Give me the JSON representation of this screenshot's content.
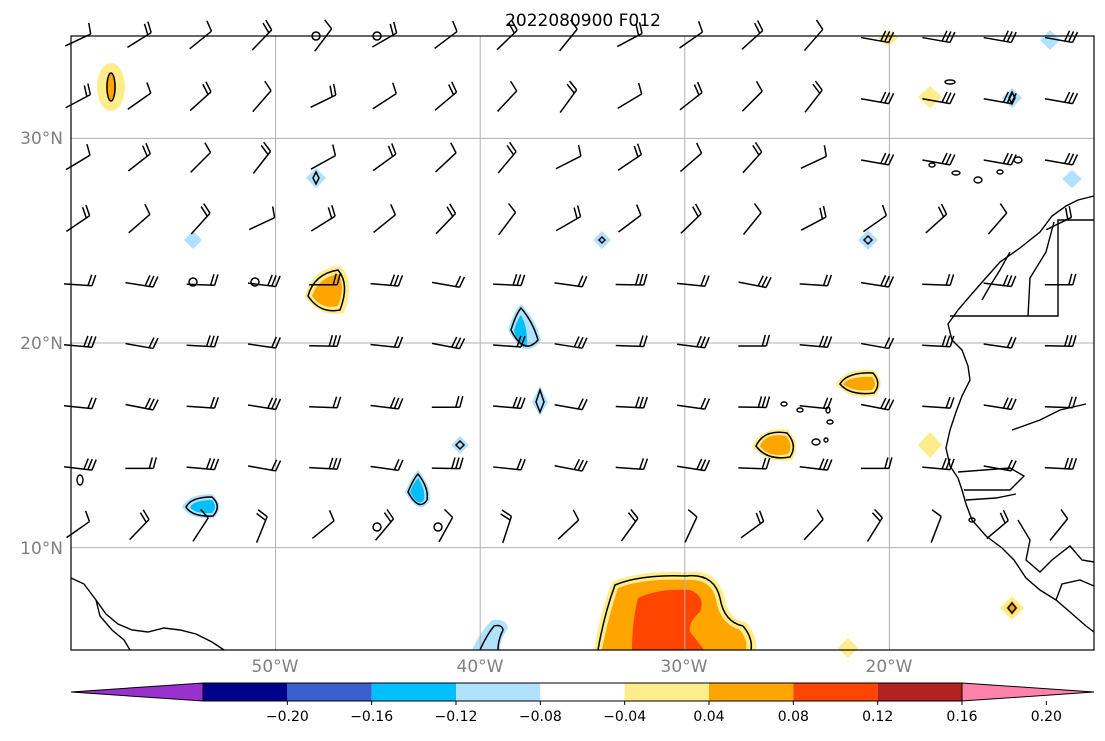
{
  "title": "2022080900 F012",
  "lat_labels": [
    "30°N",
    "20°N",
    "10°N"
  ],
  "lon_labels": [
    "50°W",
    "40°W",
    "30°W",
    "20°W"
  ],
  "colorbar": {
    "ticks": [
      "−0.20",
      "−0.16",
      "−0.12",
      "−0.08",
      "−0.04",
      "0.04",
      "0.08",
      "0.12",
      "0.16",
      "0.20"
    ],
    "colors": [
      "#9932cc",
      "#00008b",
      "#3a5fcd",
      "#00bfff",
      "#b0e2ff",
      "#ffffff",
      "#ffec8b",
      "#ffa500",
      "#ff4500",
      "#b22222",
      "#ff82ab"
    ]
  },
  "map": {
    "lon_range": [
      -60,
      -10
    ],
    "lat_range": [
      5,
      35
    ]
  }
}
